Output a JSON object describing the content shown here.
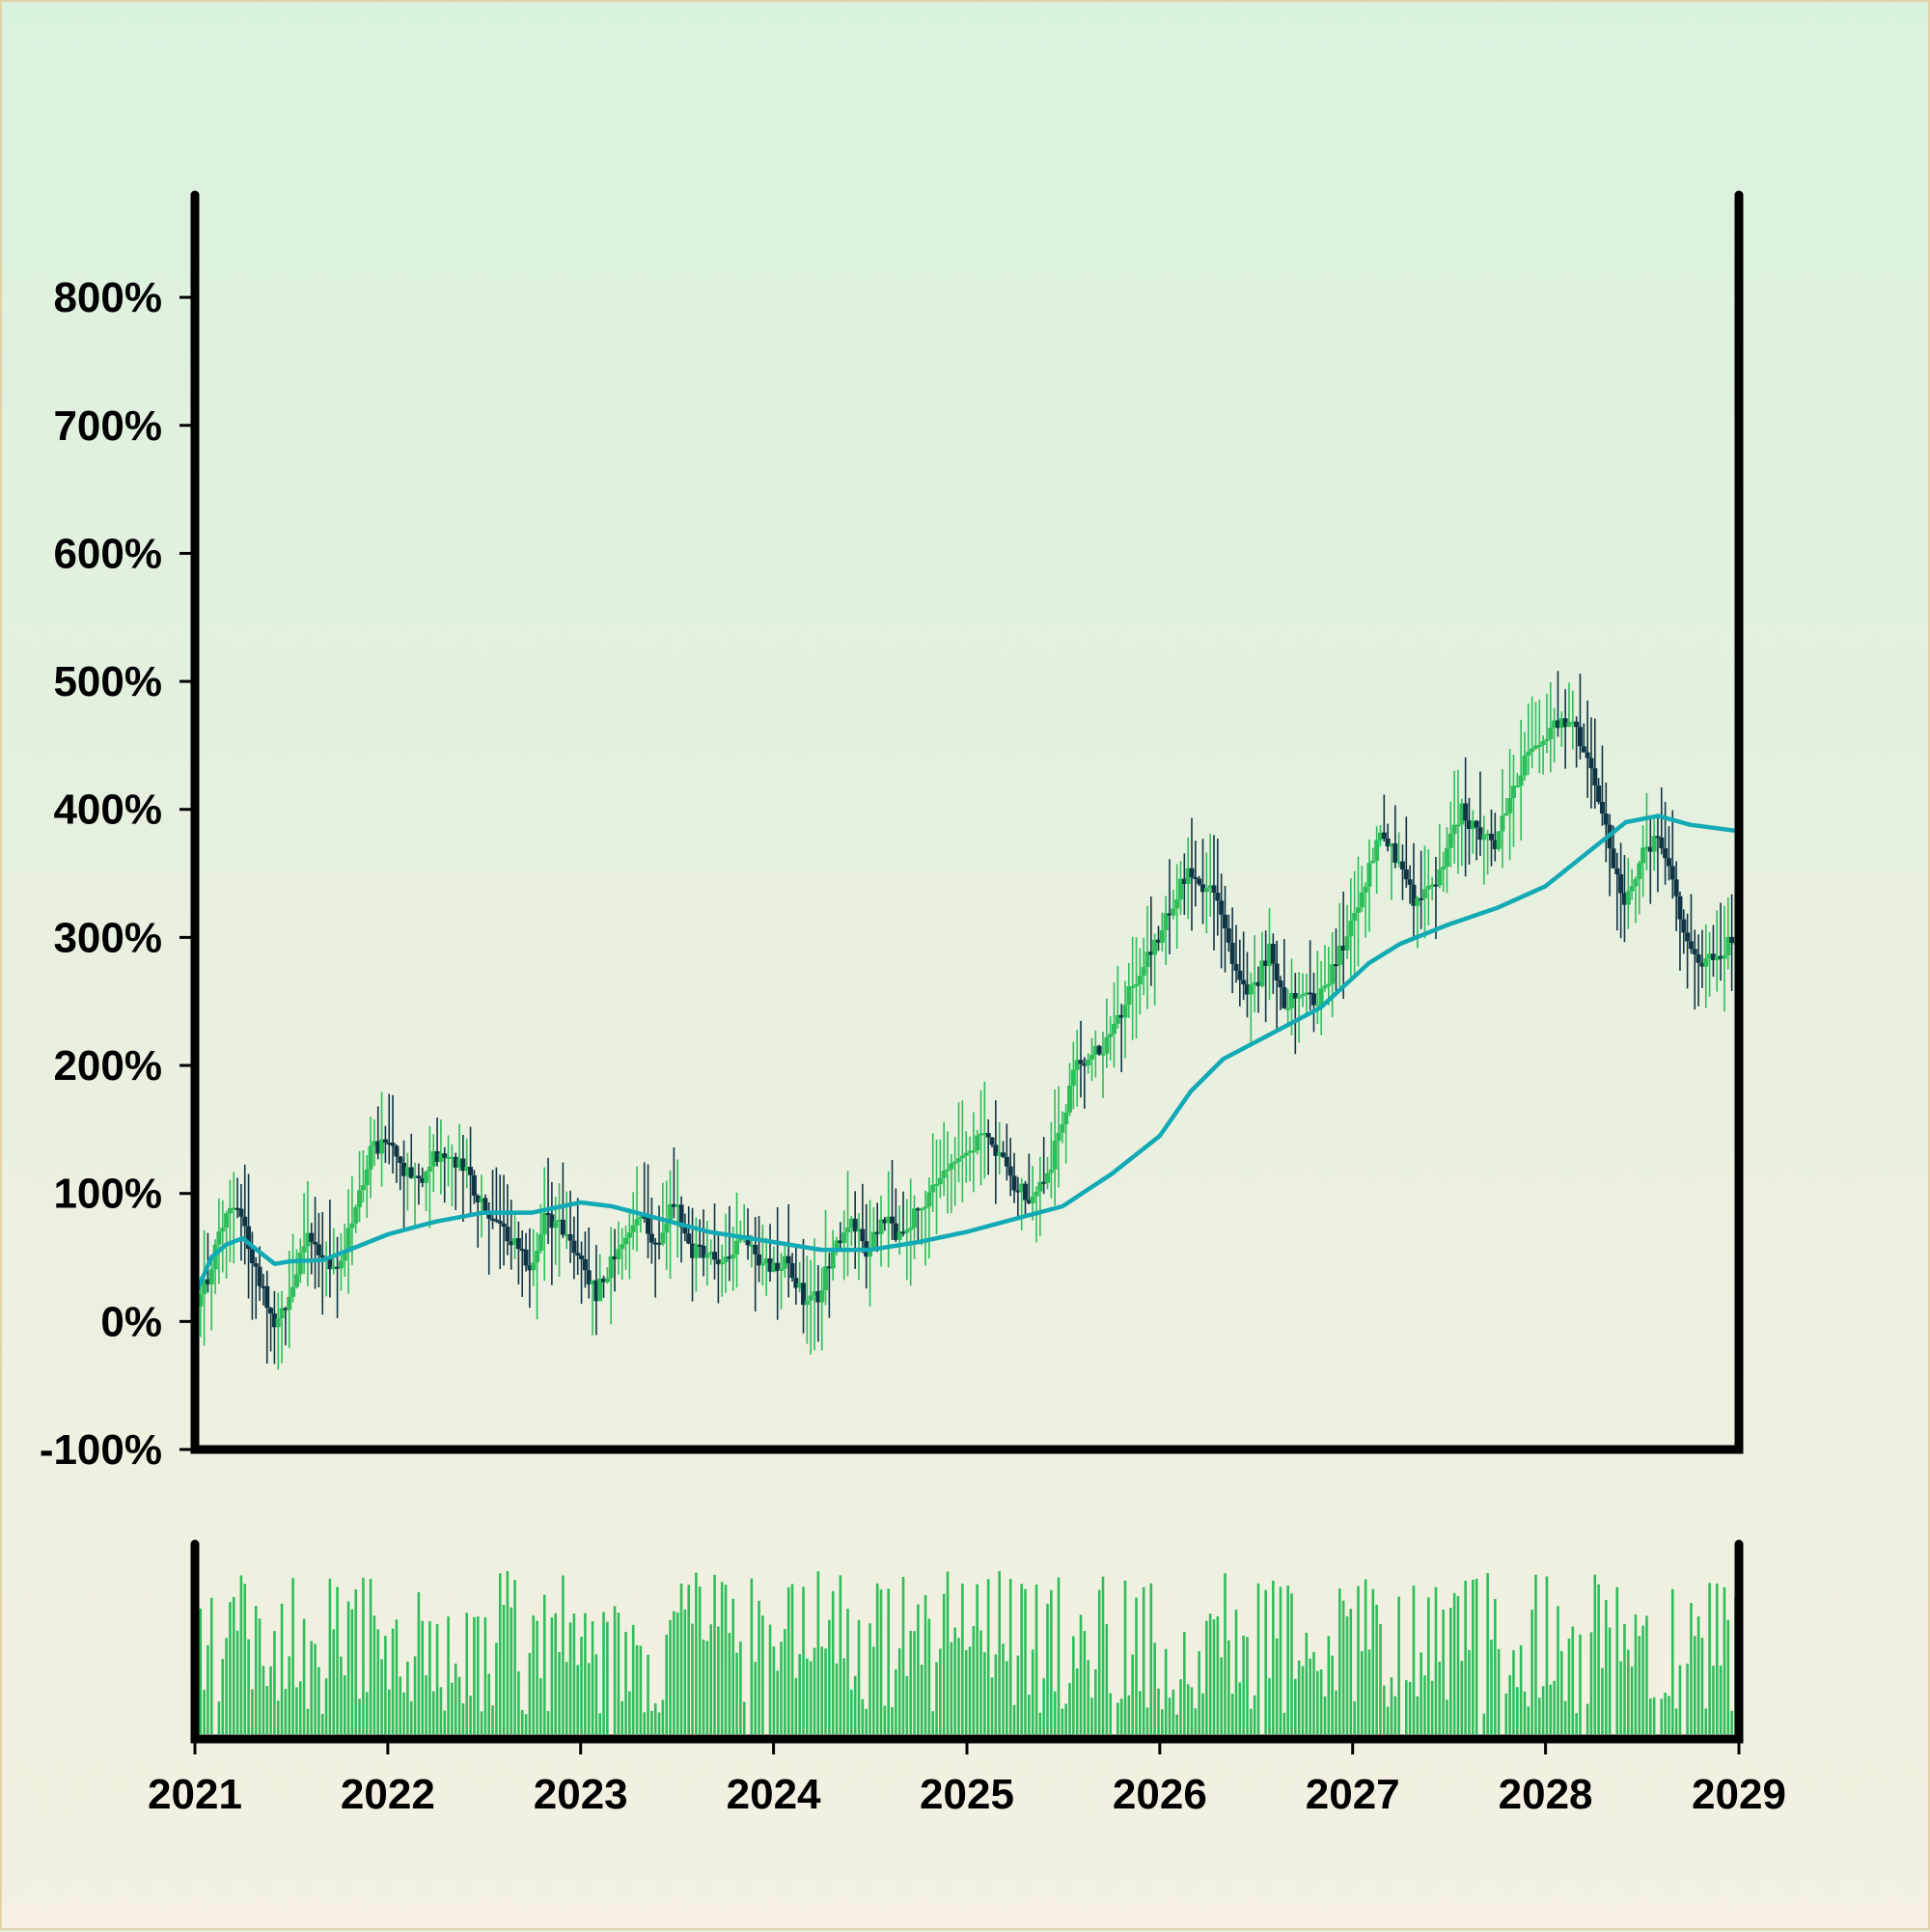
{
  "chart_data": {
    "type": "candlestick",
    "title": "",
    "xlabel": "",
    "ylabel": "",
    "colors": {
      "up": "#2dbe5a",
      "down": "#0f3545",
      "ma": "#12aab5",
      "volume": "#2dbe5a",
      "axis": "#000000"
    },
    "x_range": [
      "2021-01-01",
      "2029-01-01"
    ],
    "x_ticks": [
      "2021",
      "2022",
      "2023",
      "2024",
      "2025",
      "2026",
      "2027",
      "2028",
      "2029"
    ],
    "y_unit": "%",
    "ylim": [
      -100,
      880
    ],
    "y_ticks": [
      -100,
      0,
      100,
      200,
      300,
      400,
      500,
      600,
      700,
      800
    ],
    "y_tick_labels": [
      "-100%",
      "0%",
      "100%",
      "200%",
      "300%",
      "400%",
      "500%",
      "600%",
      "700%",
      "800%"
    ],
    "price_path": [
      [
        "2021-01-01",
        0
      ],
      [
        "2021-02-10",
        50
      ],
      [
        "2021-03-01",
        85
      ],
      [
        "2021-04-01",
        85
      ],
      [
        "2021-05-01",
        40
      ],
      [
        "2021-06-01",
        0
      ],
      [
        "2021-07-01",
        20
      ],
      [
        "2021-08-01",
        65
      ],
      [
        "2021-10-01",
        35
      ],
      [
        "2021-12-01",
        130
      ],
      [
        "2022-01-01",
        145
      ],
      [
        "2022-02-01",
        120
      ],
      [
        "2022-03-01",
        105
      ],
      [
        "2022-04-01",
        130
      ],
      [
        "2022-06-01",
        120
      ],
      [
        "2022-07-01",
        90
      ],
      [
        "2022-09-01",
        60
      ],
      [
        "2022-10-01",
        40
      ],
      [
        "2022-11-01",
        85
      ],
      [
        "2023-01-01",
        55
      ],
      [
        "2023-02-01",
        20
      ],
      [
        "2023-03-01",
        45
      ],
      [
        "2023-04-01",
        65
      ],
      [
        "2023-05-01",
        80
      ],
      [
        "2023-06-01",
        60
      ],
      [
        "2023-07-01",
        95
      ],
      [
        "2023-08-01",
        55
      ],
      [
        "2023-10-01",
        45
      ],
      [
        "2023-11-01",
        65
      ],
      [
        "2024-01-01",
        40
      ],
      [
        "2024-02-01",
        50
      ],
      [
        "2024-03-01",
        15
      ],
      [
        "2024-04-01",
        20
      ],
      [
        "2024-05-01",
        65
      ],
      [
        "2024-06-01",
        75
      ],
      [
        "2024-07-01",
        55
      ],
      [
        "2024-08-01",
        80
      ],
      [
        "2024-09-01",
        65
      ],
      [
        "2024-10-01",
        85
      ],
      [
        "2024-12-01",
        125
      ],
      [
        "2025-02-01",
        145
      ],
      [
        "2025-03-01",
        130
      ],
      [
        "2025-04-01",
        110
      ],
      [
        "2025-05-01",
        95
      ],
      [
        "2025-06-01",
        105
      ],
      [
        "2025-07-01",
        155
      ],
      [
        "2025-08-01",
        200
      ],
      [
        "2025-10-01",
        220
      ],
      [
        "2025-11-01",
        250
      ],
      [
        "2026-01-01",
        300
      ],
      [
        "2026-03-01",
        355
      ],
      [
        "2026-04-01",
        340
      ],
      [
        "2026-05-01",
        320
      ],
      [
        "2026-06-01",
        265
      ],
      [
        "2026-07-01",
        260
      ],
      [
        "2026-08-01",
        290
      ],
      [
        "2026-09-01",
        245
      ],
      [
        "2026-10-01",
        260
      ],
      [
        "2026-11-01",
        250
      ],
      [
        "2027-01-01",
        310
      ],
      [
        "2027-03-01",
        385
      ],
      [
        "2027-04-01",
        355
      ],
      [
        "2027-05-01",
        330
      ],
      [
        "2027-06-01",
        335
      ],
      [
        "2027-08-01",
        400
      ],
      [
        "2027-09-01",
        375
      ],
      [
        "2027-10-01",
        375
      ],
      [
        "2027-12-01",
        445
      ],
      [
        "2028-02-01",
        470
      ],
      [
        "2028-03-01",
        460
      ],
      [
        "2028-04-01",
        435
      ],
      [
        "2028-05-01",
        380
      ],
      [
        "2028-06-01",
        325
      ],
      [
        "2028-07-01",
        360
      ],
      [
        "2028-08-01",
        380
      ],
      [
        "2028-09-01",
        340
      ],
      [
        "2028-10-01",
        290
      ],
      [
        "2028-11-01",
        280
      ],
      [
        "2029-01-01",
        300
      ]
    ],
    "moving_average": [
      [
        "2021-01-01",
        20
      ],
      [
        "2021-02-01",
        50
      ],
      [
        "2021-03-01",
        60
      ],
      [
        "2021-04-01",
        65
      ],
      [
        "2021-05-01",
        55
      ],
      [
        "2021-06-01",
        45
      ],
      [
        "2021-07-01",
        47
      ],
      [
        "2021-09-01",
        48
      ],
      [
        "2022-01-01",
        68
      ],
      [
        "2022-04-01",
        78
      ],
      [
        "2022-07-01",
        85
      ],
      [
        "2022-10-01",
        85
      ],
      [
        "2023-01-01",
        93
      ],
      [
        "2023-03-01",
        90
      ],
      [
        "2023-06-01",
        80
      ],
      [
        "2023-09-01",
        70
      ],
      [
        "2024-01-01",
        62
      ],
      [
        "2024-04-01",
        56
      ],
      [
        "2024-07-01",
        56
      ],
      [
        "2024-10-01",
        62
      ],
      [
        "2025-01-01",
        70
      ],
      [
        "2025-04-01",
        80
      ],
      [
        "2025-07-01",
        90
      ],
      [
        "2025-10-01",
        115
      ],
      [
        "2026-01-01",
        145
      ],
      [
        "2026-03-01",
        180
      ],
      [
        "2026-05-01",
        205
      ],
      [
        "2026-08-01",
        225
      ],
      [
        "2026-11-01",
        245
      ],
      [
        "2027-02-01",
        280
      ],
      [
        "2027-04-01",
        295
      ],
      [
        "2027-07-01",
        310
      ],
      [
        "2027-10-01",
        323
      ],
      [
        "2028-01-01",
        340
      ],
      [
        "2028-04-01",
        370
      ],
      [
        "2028-06-01",
        390
      ],
      [
        "2028-08-01",
        395
      ],
      [
        "2028-10-01",
        388
      ],
      [
        "2029-01-01",
        383
      ]
    ],
    "has_volume_panel": true,
    "legend": "none",
    "grid": false
  }
}
